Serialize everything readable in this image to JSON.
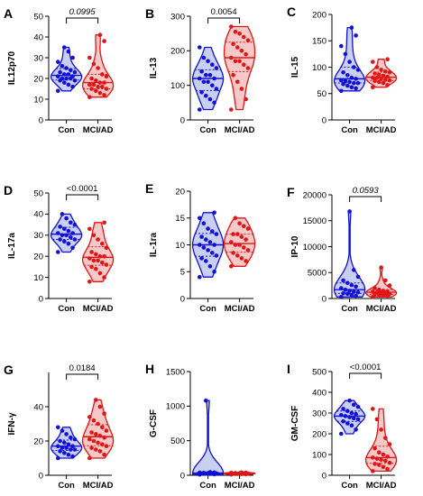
{
  "figure": {
    "colors": {
      "control": "#1010d8",
      "control_fill": "#c9cff0",
      "mci": "#e01515",
      "mci_fill": "#f7c8c8"
    }
  },
  "chart_data": [
    {
      "panel": "A",
      "type": "violin",
      "ylabel": "IL12p70",
      "ylim": [
        0,
        50
      ],
      "yticks": [
        0,
        10,
        20,
        30,
        40,
        50
      ],
      "categories": [
        "Con",
        "MCI/AD"
      ],
      "significance": "0.0995",
      "sig_italic": true,
      "series": [
        {
          "category": "Con",
          "values": [
            14,
            16,
            17,
            18,
            19,
            19,
            20,
            20,
            20,
            21,
            21,
            22,
            22,
            23,
            23,
            24,
            25,
            26,
            28,
            30,
            33,
            35
          ]
        },
        {
          "category": "MCI/AD",
          "values": [
            11,
            12,
            13,
            14,
            15,
            15,
            16,
            16,
            17,
            17,
            18,
            18,
            19,
            20,
            21,
            22,
            25,
            27,
            30,
            38,
            41
          ]
        }
      ]
    },
    {
      "panel": "B",
      "type": "violin",
      "ylabel": "IL-13",
      "ylim": [
        0,
        300
      ],
      "yticks": [
        0,
        100,
        200,
        300
      ],
      "categories": [
        "Con",
        "MCI/AD"
      ],
      "significance": "0.0054",
      "sig_italic": false,
      "series": [
        {
          "category": "Con",
          "values": [
            30,
            50,
            60,
            70,
            80,
            90,
            100,
            110,
            110,
            120,
            120,
            130,
            130,
            140,
            150,
            160,
            170,
            180,
            210
          ]
        },
        {
          "category": "MCI/AD",
          "values": [
            30,
            60,
            90,
            110,
            130,
            150,
            160,
            170,
            170,
            180,
            190,
            200,
            210,
            220,
            230,
            240,
            250,
            255,
            270
          ]
        }
      ]
    },
    {
      "panel": "C",
      "type": "violin",
      "ylabel": "IL-15",
      "ylim": [
        0,
        200
      ],
      "yticks": [
        0,
        50,
        100,
        150,
        200
      ],
      "categories": [
        "Con",
        "MCI/AD"
      ],
      "significance": "",
      "series": [
        {
          "category": "Con",
          "values": [
            55,
            60,
            62,
            65,
            68,
            70,
            70,
            72,
            74,
            75,
            78,
            80,
            85,
            90,
            95,
            100,
            110,
            125,
            140,
            160,
            175
          ]
        },
        {
          "category": "MCI/AD",
          "values": [
            62,
            66,
            70,
            72,
            74,
            75,
            76,
            78,
            80,
            80,
            82,
            84,
            86,
            88,
            90,
            92,
            95,
            100,
            110,
            115
          ]
        }
      ]
    },
    {
      "panel": "D",
      "type": "violin",
      "ylabel": "IL-17a",
      "ylim": [
        0,
        50
      ],
      "yticks": [
        0,
        10,
        20,
        30,
        40,
        50
      ],
      "categories": [
        "Con",
        "MCI/AD"
      ],
      "significance": "<0.0001",
      "sig_italic": false,
      "series": [
        {
          "category": "Con",
          "values": [
            22,
            24,
            26,
            27,
            28,
            28,
            29,
            30,
            30,
            31,
            31,
            32,
            33,
            34,
            35,
            36,
            38,
            40
          ]
        },
        {
          "category": "MCI/AD",
          "values": [
            8,
            10,
            12,
            14,
            15,
            16,
            17,
            18,
            18,
            19,
            20,
            20,
            21,
            22,
            24,
            26,
            28,
            30,
            33,
            36
          ]
        }
      ]
    },
    {
      "panel": "E",
      "type": "violin",
      "ylabel": "IL-1ra",
      "ylim": [
        0,
        20
      ],
      "yticks": [
        0,
        5,
        10,
        15,
        20
      ],
      "categories": [
        "Con",
        "MCI/AD"
      ],
      "significance": "",
      "series": [
        {
          "category": "Con",
          "values": [
            4,
            5,
            6,
            7,
            7.5,
            8,
            8.5,
            9,
            9.5,
            10,
            10,
            10.5,
            11,
            11.5,
            12,
            12.5,
            13,
            14,
            15,
            16
          ]
        },
        {
          "category": "MCI/AD",
          "values": [
            6,
            7,
            7.5,
            8,
            8.5,
            9,
            9.5,
            10,
            10,
            10.5,
            11,
            11.5,
            12,
            12,
            13,
            13.5,
            14,
            15
          ]
        }
      ]
    },
    {
      "panel": "F",
      "type": "violin",
      "ylabel": "IP-10",
      "ylim": [
        0,
        20000
      ],
      "yticks": [
        0,
        5000,
        10000,
        15000,
        20000
      ],
      "categories": [
        "Con",
        "MCI/AD"
      ],
      "significance": "0.0593",
      "sig_italic": true,
      "series": [
        {
          "category": "Con",
          "values": [
            300,
            500,
            700,
            900,
            1000,
            1200,
            1300,
            1500,
            1700,
            2000,
            2300,
            2600,
            3000,
            3500,
            4200,
            5500,
            16800
          ]
        },
        {
          "category": "MCI/AD",
          "values": [
            300,
            500,
            600,
            700,
            800,
            900,
            1000,
            1100,
            1200,
            1300,
            1400,
            1500,
            1700,
            2000,
            2500,
            3500,
            6000
          ]
        }
      ]
    },
    {
      "panel": "G",
      "type": "violin",
      "ylabel": "IFN-γ",
      "ylim": [
        0,
        60
      ],
      "yticks": [
        0,
        20,
        40
      ],
      "categories": [
        "Con",
        "MCI/AD"
      ],
      "significance": "0.0184",
      "sig_italic": false,
      "series": [
        {
          "category": "Con",
          "values": [
            10,
            11,
            12,
            13,
            14,
            15,
            15,
            16,
            16,
            17,
            17,
            18,
            19,
            20,
            21,
            22,
            24,
            26,
            28
          ]
        },
        {
          "category": "MCI/AD",
          "values": [
            10,
            12,
            14,
            15,
            16,
            17,
            18,
            19,
            20,
            21,
            22,
            23,
            24,
            25,
            26,
            28,
            30,
            32,
            34,
            36,
            40,
            44
          ]
        }
      ]
    },
    {
      "panel": "H",
      "type": "violin",
      "ylabel": "G-CSF",
      "ylim": [
        0,
        1500
      ],
      "yticks": [
        0,
        500,
        1000,
        1500
      ],
      "categories": [
        "Con",
        "MCI/AD"
      ],
      "significance": "",
      "series": [
        {
          "category": "Con",
          "values": [
            10,
            15,
            20,
            22,
            25,
            28,
            30,
            32,
            35,
            38,
            40,
            45,
            1080
          ]
        },
        {
          "category": "MCI/AD",
          "values": [
            10,
            15,
            18,
            20,
            22,
            25,
            28,
            30,
            32,
            35,
            38,
            40
          ]
        }
      ]
    },
    {
      "panel": "I",
      "type": "violin",
      "ylabel": "GM-CSF",
      "ylim": [
        0,
        500
      ],
      "yticks": [
        0,
        100,
        200,
        300,
        400,
        500
      ],
      "categories": [
        "Con",
        "MCI/AD"
      ],
      "significance": "<0.0001",
      "sig_italic": false,
      "series": [
        {
          "category": "Con",
          "values": [
            200,
            220,
            240,
            250,
            260,
            270,
            275,
            280,
            285,
            290,
            295,
            300,
            310,
            320,
            330,
            340,
            360
          ]
        },
        {
          "category": "MCI/AD",
          "values": [
            20,
            30,
            40,
            50,
            55,
            60,
            70,
            75,
            80,
            85,
            90,
            100,
            110,
            130,
            150,
            180,
            220,
            270,
            320
          ]
        }
      ]
    }
  ]
}
